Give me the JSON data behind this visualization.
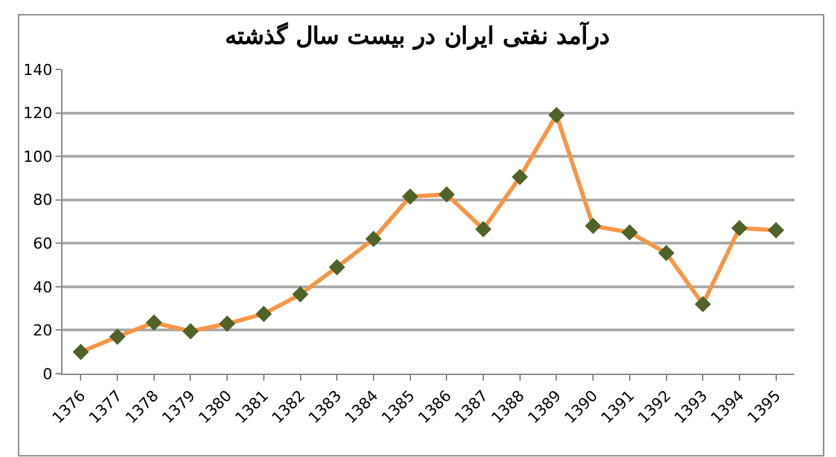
{
  "chart_data": {
    "type": "line",
    "title": "درآمد نفتی ایران در بیست سال گذشته",
    "categories": [
      "1376",
      "1377",
      "1378",
      "1379",
      "1380",
      "1381",
      "1382",
      "1383",
      "1384",
      "1385",
      "1386",
      "1387",
      "1388",
      "1389",
      "1390",
      "1391",
      "1392",
      "1393",
      "1394",
      "1395"
    ],
    "series": [
      {
        "color": "#f79646",
        "colors": [
          "#4f6228",
          "#4f6228",
          "#4f6228",
          "#4f6228",
          "#4f6228",
          "#4f6228",
          "#4f6228",
          "#4f6228",
          "#4f6228",
          "#4f6228",
          "#4f6228",
          "#4f6228",
          "#4f6228",
          "#4f6228",
          "#4f6228",
          "#4f6228",
          "#4f6228",
          "#4f6228",
          "#4f6228",
          "#4f6228"
        ],
        "values": [
          10,
          17,
          23.5,
          19.5,
          23,
          27.5,
          36.5,
          49,
          62,
          81.5,
          82.5,
          66.5,
          90.5,
          119,
          68,
          65,
          55.5,
          32,
          67,
          66
        ]
      }
    ],
    "ylim": [
      0,
      140
    ],
    "yticks": [
      0,
      20,
      40,
      60,
      80,
      100,
      120,
      140
    ],
    "grid": "y",
    "marker": "diamond",
    "line_style": "solid"
  }
}
